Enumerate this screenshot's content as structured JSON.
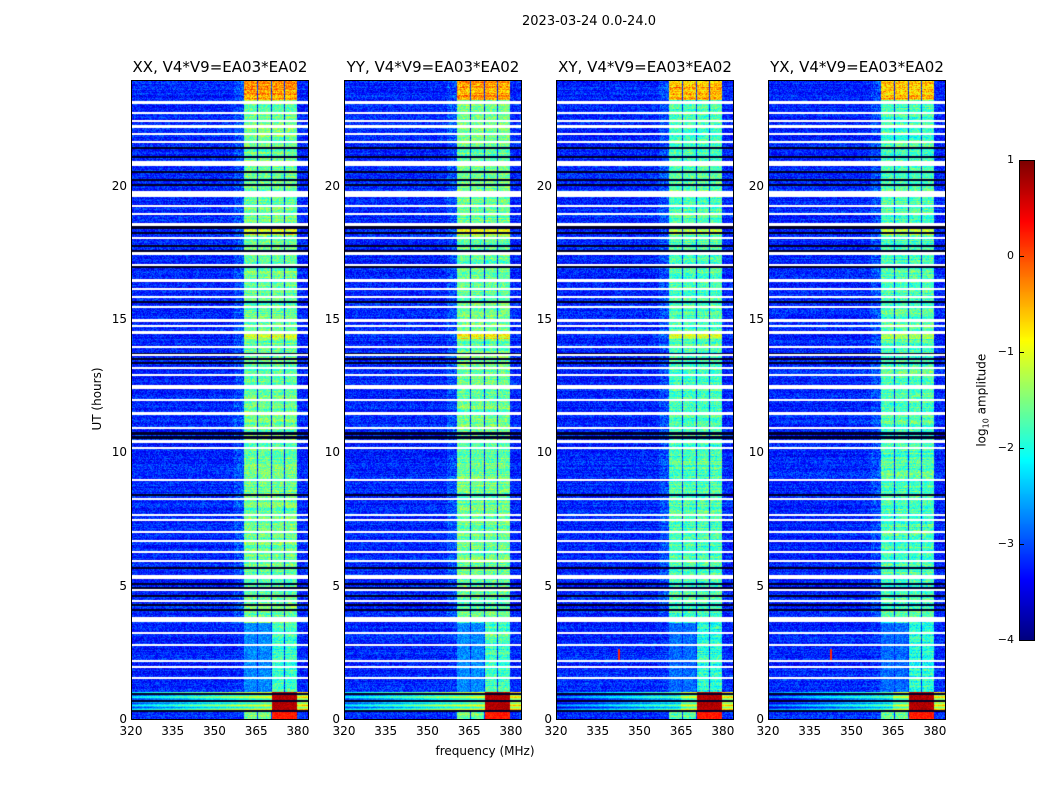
{
  "suptitle": "2023-03-24 0.0-24.0",
  "ylabel": "UT (hours)",
  "xlabel": "frequency (MHz)",
  "chart_data": [
    {
      "type": "heatmap",
      "title": "XX, V4*V9=EA03*EA02",
      "xlim": [
        320,
        384
      ],
      "ylim": [
        0,
        24
      ],
      "xticks": [
        "320",
        "335",
        "350",
        "365",
        "380"
      ],
      "yticks": [
        "0",
        "5",
        "10",
        "15",
        "20"
      ],
      "show_ylabel": true,
      "show_xlabel": false,
      "rfi_spikes": []
    },
    {
      "type": "heatmap",
      "title": "YY, V4*V9=EA03*EA02",
      "xlim": [
        320,
        384
      ],
      "ylim": [
        0,
        24
      ],
      "xticks": [
        "320",
        "335",
        "350",
        "365",
        "380"
      ],
      "yticks": [
        "0",
        "5",
        "10",
        "15",
        "20"
      ],
      "show_ylabel": false,
      "show_xlabel": true,
      "rfi_spikes": []
    },
    {
      "type": "heatmap",
      "title": "XY, V4*V9=EA03*EA02",
      "xlim": [
        320,
        384
      ],
      "ylim": [
        0,
        24
      ],
      "xticks": [
        "320",
        "335",
        "350",
        "365",
        "380"
      ],
      "yticks": [
        "0",
        "5",
        "10",
        "15",
        "20"
      ],
      "show_ylabel": false,
      "show_xlabel": false,
      "rfi_spikes": [
        [
          342.5,
          2.4
        ]
      ]
    },
    {
      "type": "heatmap",
      "title": "YX, V4*V9=EA03*EA02",
      "xlim": [
        320,
        384
      ],
      "ylim": [
        0,
        24
      ],
      "xticks": [
        "320",
        "335",
        "350",
        "365",
        "380"
      ],
      "yticks": [
        "0",
        "5",
        "10",
        "15",
        "20"
      ],
      "show_ylabel": false,
      "show_xlabel": false,
      "rfi_spikes": [
        [
          342.5,
          2.4
        ]
      ]
    }
  ],
  "features": {
    "background_log_amp": -3.2,
    "bright_channels_mhz": [
      [
        360.6,
        365.3
      ],
      [
        366,
        370.4
      ],
      [
        371,
        375.4
      ],
      [
        375.8,
        380.1
      ]
    ],
    "bright_channel_log_amp": -1.6,
    "flagged_hours_white": [
      [
        23.15,
        23.25
      ],
      [
        22.75,
        22.85
      ],
      [
        22.45,
        22.55
      ],
      [
        22.25,
        22.33
      ],
      [
        21.95,
        22.05
      ],
      [
        21.65,
        21.75
      ],
      [
        20.8,
        21.0
      ],
      [
        19.65,
        19.85
      ],
      [
        19.25,
        19.33
      ],
      [
        18.95,
        19.05
      ],
      [
        18.55,
        18.65
      ],
      [
        18.05,
        18.13
      ],
      [
        17.45,
        17.55
      ],
      [
        17.05,
        17.13
      ],
      [
        16.45,
        16.55
      ],
      [
        16.15,
        16.23
      ],
      [
        15.85,
        15.93
      ],
      [
        15.45,
        15.55
      ],
      [
        14.95,
        15.05
      ],
      [
        14.75,
        14.83
      ],
      [
        14.5,
        14.6
      ],
      [
        13.95,
        14.05
      ],
      [
        13.65,
        13.73
      ],
      [
        13.15,
        13.25
      ],
      [
        12.9,
        12.98
      ],
      [
        12.4,
        12.55
      ],
      [
        11.95,
        12.03
      ],
      [
        11.45,
        11.53
      ],
      [
        10.9,
        10.98
      ],
      [
        10.4,
        10.48
      ],
      [
        10.15,
        10.23
      ],
      [
        8.95,
        9.03
      ],
      [
        8.25,
        8.33
      ],
      [
        7.65,
        7.73
      ],
      [
        7.45,
        7.53
      ],
      [
        7.0,
        7.08
      ],
      [
        6.65,
        6.73
      ],
      [
        6.25,
        6.33
      ],
      [
        5.9,
        5.98
      ],
      [
        5.25,
        5.4
      ],
      [
        4.8,
        4.88
      ],
      [
        4.4,
        4.48
      ],
      [
        3.65,
        3.85
      ],
      [
        3.2,
        3.28
      ],
      [
        2.75,
        2.83
      ],
      [
        2.15,
        2.23
      ],
      [
        1.9,
        1.98
      ],
      [
        1.5,
        1.58
      ]
    ],
    "flagged_hours_black": [
      [
        21.45,
        21.53
      ],
      [
        21.1,
        21.18
      ],
      [
        20.55,
        20.63
      ],
      [
        20.25,
        20.33
      ],
      [
        20.05,
        20.13
      ],
      [
        18.45,
        18.53
      ],
      [
        18.25,
        18.33
      ],
      [
        17.75,
        17.83
      ],
      [
        17.55,
        17.63
      ],
      [
        16.95,
        17.03
      ],
      [
        15.65,
        15.73
      ],
      [
        13.7,
        13.78
      ],
      [
        13.5,
        13.58
      ],
      [
        13.35,
        13.43
      ],
      [
        10.7,
        10.78
      ],
      [
        10.55,
        10.63
      ],
      [
        8.4,
        8.48
      ],
      [
        5.65,
        5.73
      ],
      [
        5.05,
        5.13
      ],
      [
        4.9,
        4.98
      ],
      [
        4.6,
        4.68
      ],
      [
        4.25,
        4.33
      ],
      [
        4.05,
        4.13
      ],
      [
        0.9,
        0.98
      ],
      [
        0.65,
        0.73
      ],
      [
        0.25,
        0.33
      ]
    ],
    "strong_rfi_hours": [
      0.35,
      1.0
    ],
    "strong_rfi_log_amp": 0.6
  },
  "colorbar": {
    "label_prefix": "log",
    "label_sub": "10",
    "label_suffix": " amplitude",
    "range": [
      -4,
      1
    ],
    "ticks": [
      "1",
      "0",
      "−1",
      "−2",
      "−3",
      "−4"
    ],
    "tick_values": [
      1,
      0,
      -1,
      -2,
      -3,
      -4
    ],
    "colormap": "jet"
  }
}
